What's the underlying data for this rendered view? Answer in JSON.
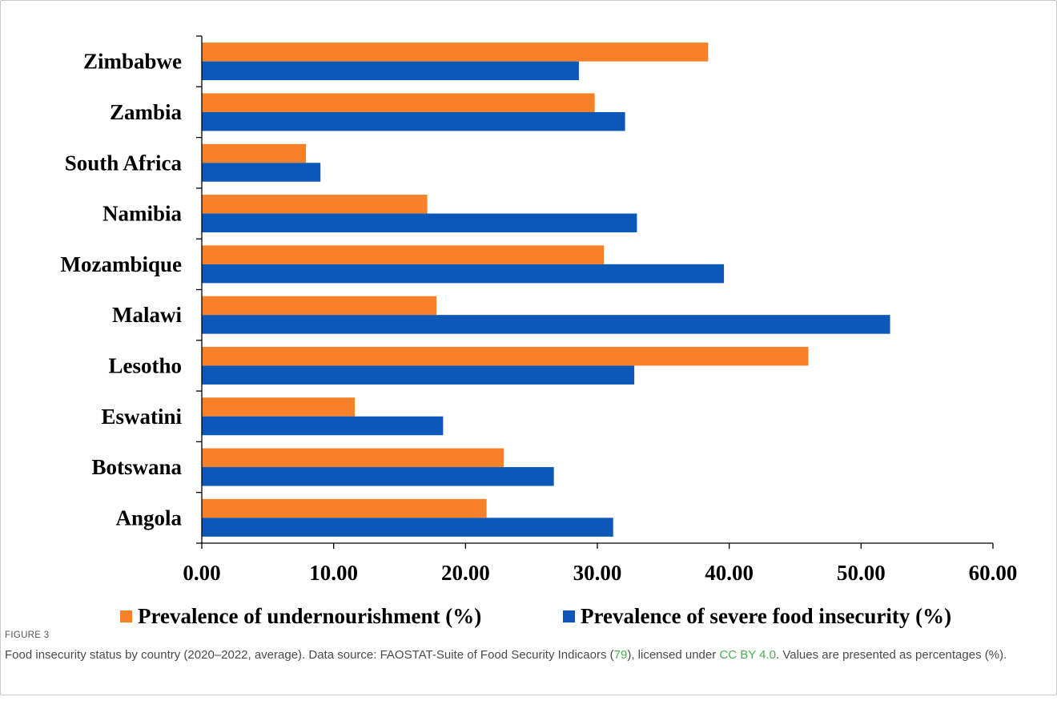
{
  "chart_data": {
    "type": "bar",
    "orientation": "horizontal",
    "categories": [
      "Zimbabwe",
      "Zambia",
      "South Africa",
      "Namibia",
      "Mozambique",
      "Malawi",
      "Lesotho",
      "Eswatini",
      "Botswana",
      "Angola"
    ],
    "series": [
      {
        "name": "Prevalence of undernourishment (%)",
        "color": "#F68128",
        "values": [
          38.4,
          29.8,
          7.9,
          17.1,
          30.5,
          17.8,
          46.0,
          11.6,
          22.9,
          21.6
        ]
      },
      {
        "name": "Prevalence of severe food insecurity (%)",
        "color": "#0B58B8",
        "values": [
          28.6,
          32.1,
          9.0,
          33.0,
          39.6,
          52.2,
          32.8,
          18.3,
          26.7,
          31.2
        ]
      }
    ],
    "xlim": [
      0,
      60
    ],
    "xticks": [
      "0.00",
      "10.00",
      "20.00",
      "30.00",
      "40.00",
      "50.00",
      "60.00"
    ],
    "xtick_values": [
      0,
      10,
      20,
      30,
      40,
      50,
      60
    ],
    "grid": false,
    "legend_position": "bottom"
  },
  "caption": {
    "figure_label": "FIGURE 3",
    "text_before_ref": "Food insecurity status by country (2020–2022, average). Data source: FAOSTAT-Suite of Food Security Indicaors (",
    "ref_number": "79",
    "text_before_license": "), licensed under ",
    "license_link": "CC BY 4.0",
    "text_after_license": ". Values are presented as percentages (%)."
  }
}
